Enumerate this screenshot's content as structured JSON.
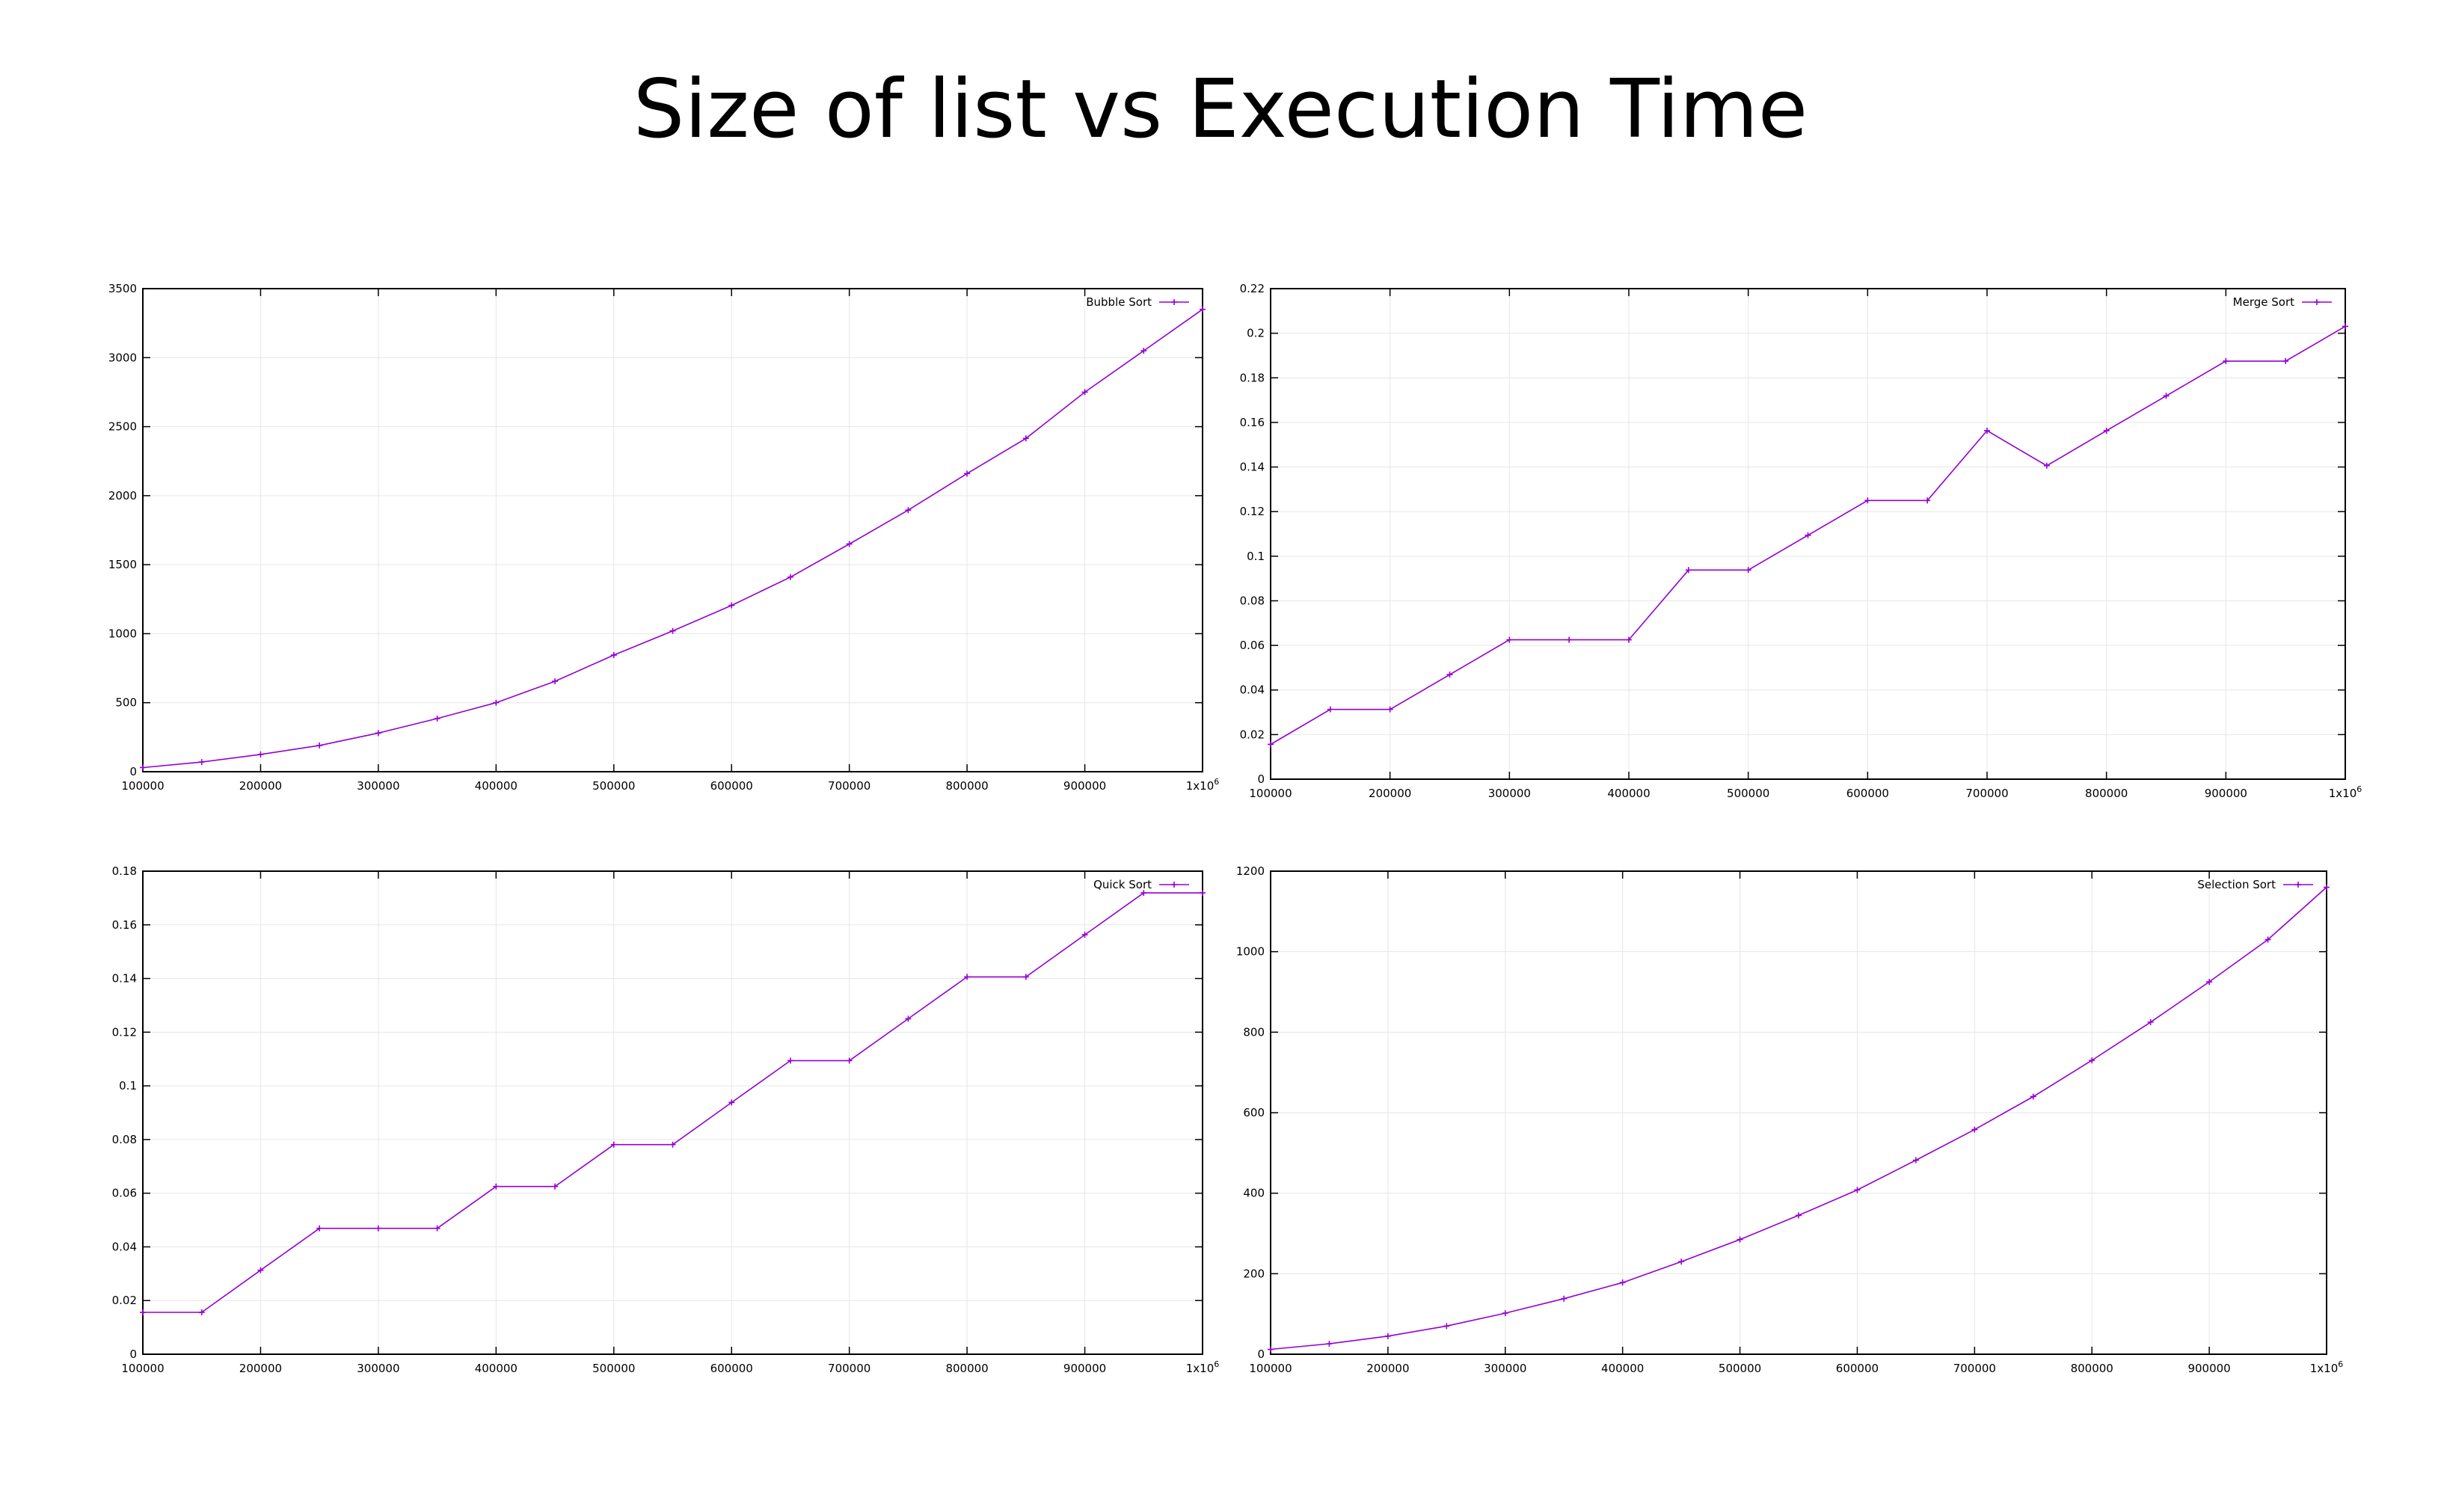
{
  "title": "Size of list vs Execution Time",
  "colors": {
    "series": "#9400d3",
    "grid": "#e6e6e6",
    "axis": "#000000"
  },
  "chart_data": [
    {
      "type": "line",
      "grid": true,
      "legend_position": "top-right",
      "x_ticks": [
        "100000",
        "200000",
        "300000",
        "400000",
        "500000",
        "600000",
        "700000",
        "800000",
        "900000"
      ],
      "x_tick_last": "1x10",
      "x_tick_last_sup": "6",
      "xlim": [
        100000,
        1000000
      ],
      "ylim": [
        0,
        3500
      ],
      "y_ticks": [
        "0",
        "500",
        "1000",
        "1500",
        "2000",
        "2500",
        "3000",
        "3500"
      ],
      "series": [
        {
          "name": "Bubble Sort",
          "x": [
            100000,
            150000,
            200000,
            250000,
            300000,
            350000,
            400000,
            450000,
            500000,
            550000,
            600000,
            650000,
            700000,
            750000,
            800000,
            850000,
            900000,
            950000,
            1000000
          ],
          "y": [
            30,
            70,
            125,
            190,
            280,
            385,
            500,
            655,
            845,
            1020,
            1205,
            1410,
            1650,
            1895,
            2160,
            2415,
            2750,
            3050,
            3350
          ]
        }
      ]
    },
    {
      "type": "line",
      "grid": true,
      "legend_position": "top-right",
      "x_ticks": [
        "100000",
        "200000",
        "300000",
        "400000",
        "500000",
        "600000",
        "700000",
        "800000",
        "900000"
      ],
      "x_tick_last": "1x10",
      "x_tick_last_sup": "6",
      "xlim": [
        100000,
        1000000
      ],
      "ylim": [
        0,
        0.22
      ],
      "y_ticks": [
        "0",
        "0.02",
        "0.04",
        "0.06",
        "0.08",
        "0.1",
        "0.12",
        "0.14",
        "0.16",
        "0.18",
        "0.2",
        "0.22"
      ],
      "series": [
        {
          "name": "Merge Sort",
          "x": [
            100000,
            150000,
            200000,
            250000,
            300000,
            350000,
            400000,
            450000,
            500000,
            550000,
            600000,
            650000,
            700000,
            750000,
            800000,
            850000,
            900000,
            950000,
            1000000
          ],
          "y": [
            0.0156,
            0.0313,
            0.0313,
            0.0469,
            0.0625,
            0.0625,
            0.0625,
            0.0938,
            0.0938,
            0.1094,
            0.125,
            0.125,
            0.1563,
            0.1406,
            0.1563,
            0.1719,
            0.1875,
            0.1875,
            0.2031
          ]
        }
      ]
    },
    {
      "type": "line",
      "grid": true,
      "legend_position": "top-right",
      "x_ticks": [
        "100000",
        "200000",
        "300000",
        "400000",
        "500000",
        "600000",
        "700000",
        "800000",
        "900000"
      ],
      "x_tick_last": "1x10",
      "x_tick_last_sup": "6",
      "xlim": [
        100000,
        1000000
      ],
      "ylim": [
        0,
        0.18
      ],
      "y_ticks": [
        "0",
        "0.02",
        "0.04",
        "0.06",
        "0.08",
        "0.1",
        "0.12",
        "0.14",
        "0.16",
        "0.18"
      ],
      "series": [
        {
          "name": "Quick Sort",
          "x": [
            100000,
            150000,
            200000,
            250000,
            300000,
            350000,
            400000,
            450000,
            500000,
            550000,
            600000,
            650000,
            700000,
            750000,
            800000,
            850000,
            900000,
            950000,
            1000000
          ],
          "y": [
            0.0156,
            0.0156,
            0.0313,
            0.0469,
            0.0469,
            0.0469,
            0.0625,
            0.0625,
            0.0781,
            0.0781,
            0.0938,
            0.1094,
            0.1094,
            0.125,
            0.1406,
            0.1406,
            0.1563,
            0.1719,
            0.1719
          ]
        }
      ]
    },
    {
      "type": "line",
      "grid": true,
      "legend_position": "top-right",
      "x_ticks": [
        "100000",
        "200000",
        "300000",
        "400000",
        "500000",
        "600000",
        "700000",
        "800000",
        "900000"
      ],
      "x_tick_last": "1x10",
      "x_tick_last_sup": "6",
      "xlim": [
        100000,
        1000000
      ],
      "ylim": [
        0,
        1200
      ],
      "y_ticks": [
        "0",
        "200",
        "400",
        "600",
        "800",
        "1000",
        "1200"
      ],
      "series": [
        {
          "name": "Selection Sort",
          "x": [
            100000,
            150000,
            200000,
            250000,
            300000,
            350000,
            400000,
            450000,
            500000,
            550000,
            600000,
            650000,
            700000,
            750000,
            800000,
            850000,
            900000,
            950000,
            1000000
          ],
          "y": [
            12,
            26,
            45,
            70,
            102,
            138,
            178,
            230,
            285,
            345,
            408,
            482,
            558,
            640,
            730,
            825,
            925,
            1030,
            1160
          ]
        }
      ]
    }
  ]
}
